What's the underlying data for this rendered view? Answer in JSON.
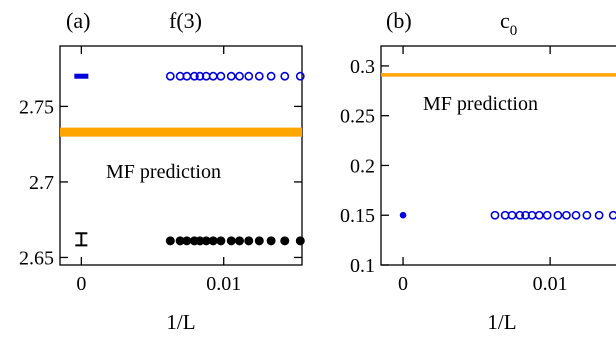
{
  "chart_data": [
    {
      "panel_label": "(a)",
      "title": "f(3)",
      "type": "scatter",
      "xlabel": "1/L",
      "ylabel": "",
      "xlim": [
        -0.0015,
        0.0155
      ],
      "ylim": [
        2.645,
        2.79
      ],
      "x_ticks": [
        0,
        0.01
      ],
      "x_tick_labels": [
        "0",
        "0.01"
      ],
      "y_ticks": [
        2.65,
        2.7,
        2.75
      ],
      "y_tick_labels": [
        "2.65",
        "2.7",
        "2.75"
      ],
      "annotation": "MF prediction",
      "reference_lines": [
        {
          "y": 2.733,
          "color": "#ffa500"
        }
      ],
      "series": [
        {
          "color": "#0000dd",
          "marker": "open-circle",
          "x": [
            0.00625,
            0.00694,
            0.00741,
            0.00794,
            0.00833,
            0.00877,
            0.00926,
            0.0098,
            0.01053,
            0.01111,
            0.01176,
            0.0125,
            0.01333,
            0.01429,
            0.01538
          ],
          "y": [
            2.77,
            2.77,
            2.77,
            2.77,
            2.77,
            2.77,
            2.77,
            2.77,
            2.77,
            2.77,
            2.77,
            2.77,
            2.77,
            2.77,
            2.77
          ]
        },
        {
          "color": "#000000",
          "marker": "filled-circle",
          "x": [
            0.00625,
            0.00694,
            0.00741,
            0.00794,
            0.00833,
            0.00877,
            0.00926,
            0.0098,
            0.01053,
            0.01111,
            0.01176,
            0.0125,
            0.01333,
            0.01429,
            0.01538
          ],
          "y": [
            2.661,
            2.661,
            2.661,
            2.661,
            2.661,
            2.661,
            2.661,
            2.661,
            2.661,
            2.661,
            2.661,
            2.661,
            2.661,
            2.661,
            2.661
          ]
        }
      ],
      "extrapolations": [
        {
          "color": "#0000dd",
          "x": 0,
          "y": 2.77,
          "err": 0.001
        },
        {
          "color": "#000000",
          "x": 0,
          "y": 2.662,
          "err": 0.004
        }
      ]
    },
    {
      "panel_label": "(b)",
      "title": "c",
      "title_subscript": "0",
      "type": "scatter",
      "xlabel": "1/L",
      "ylabel": "",
      "xlim": [
        -0.0015,
        0.0155
      ],
      "ylim": [
        0.1,
        0.32
      ],
      "x_ticks": [
        0,
        0.01
      ],
      "x_tick_labels": [
        "0",
        "0.01"
      ],
      "y_ticks": [
        0.1,
        0.15,
        0.2,
        0.25,
        0.3
      ],
      "y_tick_labels": [
        "0.1",
        "0.15",
        "0.2",
        "0.25",
        "0.3"
      ],
      "annotation": "MF prediction",
      "reference_lines": [
        {
          "y": 0.291,
          "color": "#ffa500"
        }
      ],
      "series": [
        {
          "color": "#0000dd",
          "marker": "open-circle",
          "x": [
            0.00625,
            0.00694,
            0.00741,
            0.00794,
            0.00833,
            0.00877,
            0.00926,
            0.0098,
            0.01053,
            0.01111,
            0.01176,
            0.0125,
            0.01333,
            0.01429,
            0.01538
          ],
          "y": [
            0.15,
            0.15,
            0.15,
            0.15,
            0.15,
            0.15,
            0.15,
            0.15,
            0.15,
            0.15,
            0.15,
            0.15,
            0.15,
            0.15,
            0.15
          ]
        }
      ],
      "extrapolations": [
        {
          "color": "#0000dd",
          "x": 0,
          "y": 0.15
        }
      ]
    }
  ]
}
